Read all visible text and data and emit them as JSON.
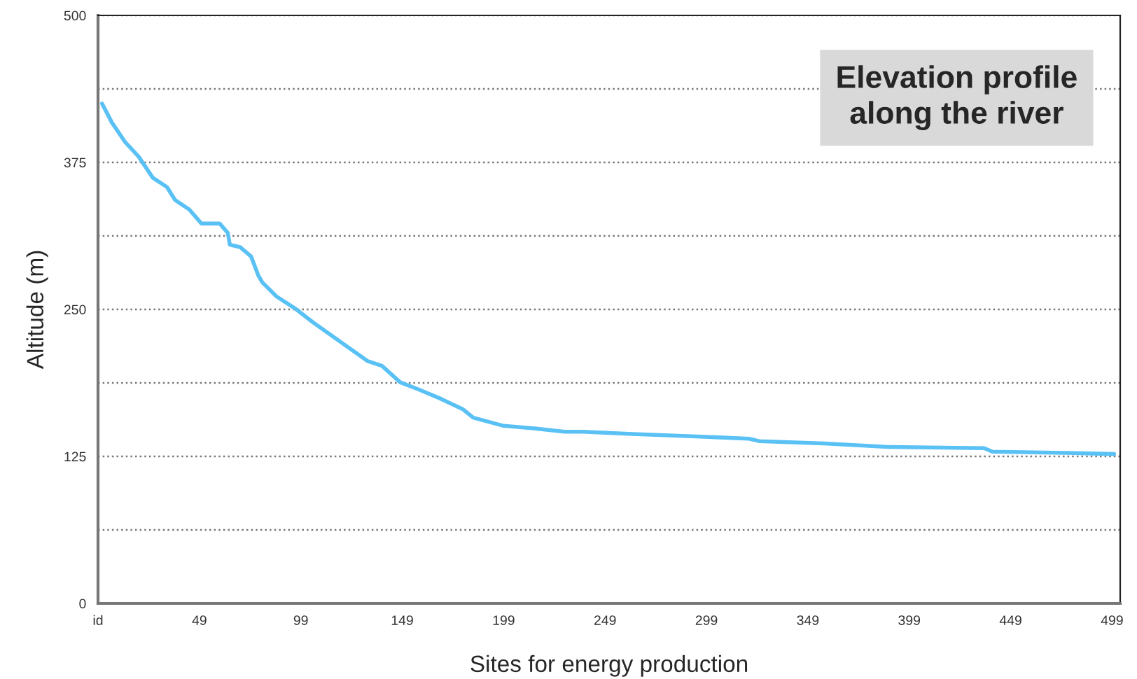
{
  "chart_data": {
    "type": "line",
    "title": "Elevation profile\nalong the river",
    "xlabel": "Sites for energy production",
    "ylabel": "Altitude (m)",
    "x": [
      1,
      5.8,
      12.5,
      19,
      26,
      33,
      37,
      44,
      50,
      59,
      63,
      64,
      69,
      74.5,
      78,
      80,
      87,
      96,
      105,
      114,
      123,
      132,
      139,
      148,
      157,
      168,
      179,
      184,
      199,
      213,
      229,
      238,
      262.5,
      294,
      320,
      325,
      357,
      388.6,
      436,
      440,
      476,
      500
    ],
    "series": [
      {
        "color": "#5ac1f5",
        "values": [
          425,
          409,
          392,
          380,
          362,
          354,
          343,
          335,
          323,
          323,
          315,
          305,
          303,
          295,
          279,
          273,
          261,
          251,
          239,
          228,
          217,
          206,
          202,
          188,
          182,
          174,
          165,
          158,
          151,
          149,
          146,
          146,
          144,
          142,
          140,
          138,
          136,
          133,
          132,
          129,
          128,
          127
        ]
      }
    ],
    "xlim": [
      -1,
      503
    ],
    "xticks": [
      {
        "value": -1,
        "label": "id"
      },
      49,
      99,
      149,
      199,
      249,
      299,
      349,
      399,
      449,
      499
    ],
    "ylim": [
      0,
      500
    ],
    "yticks": [
      0,
      {
        "value": 62.5,
        "label": null
      },
      125,
      {
        "value": 187.5,
        "label": null
      },
      250,
      {
        "value": 312.5,
        "label": null
      },
      375,
      {
        "value": 437.5,
        "label": null
      },
      500
    ],
    "grid": "y",
    "line_style": "solid",
    "marker": "none",
    "legend": false
  }
}
